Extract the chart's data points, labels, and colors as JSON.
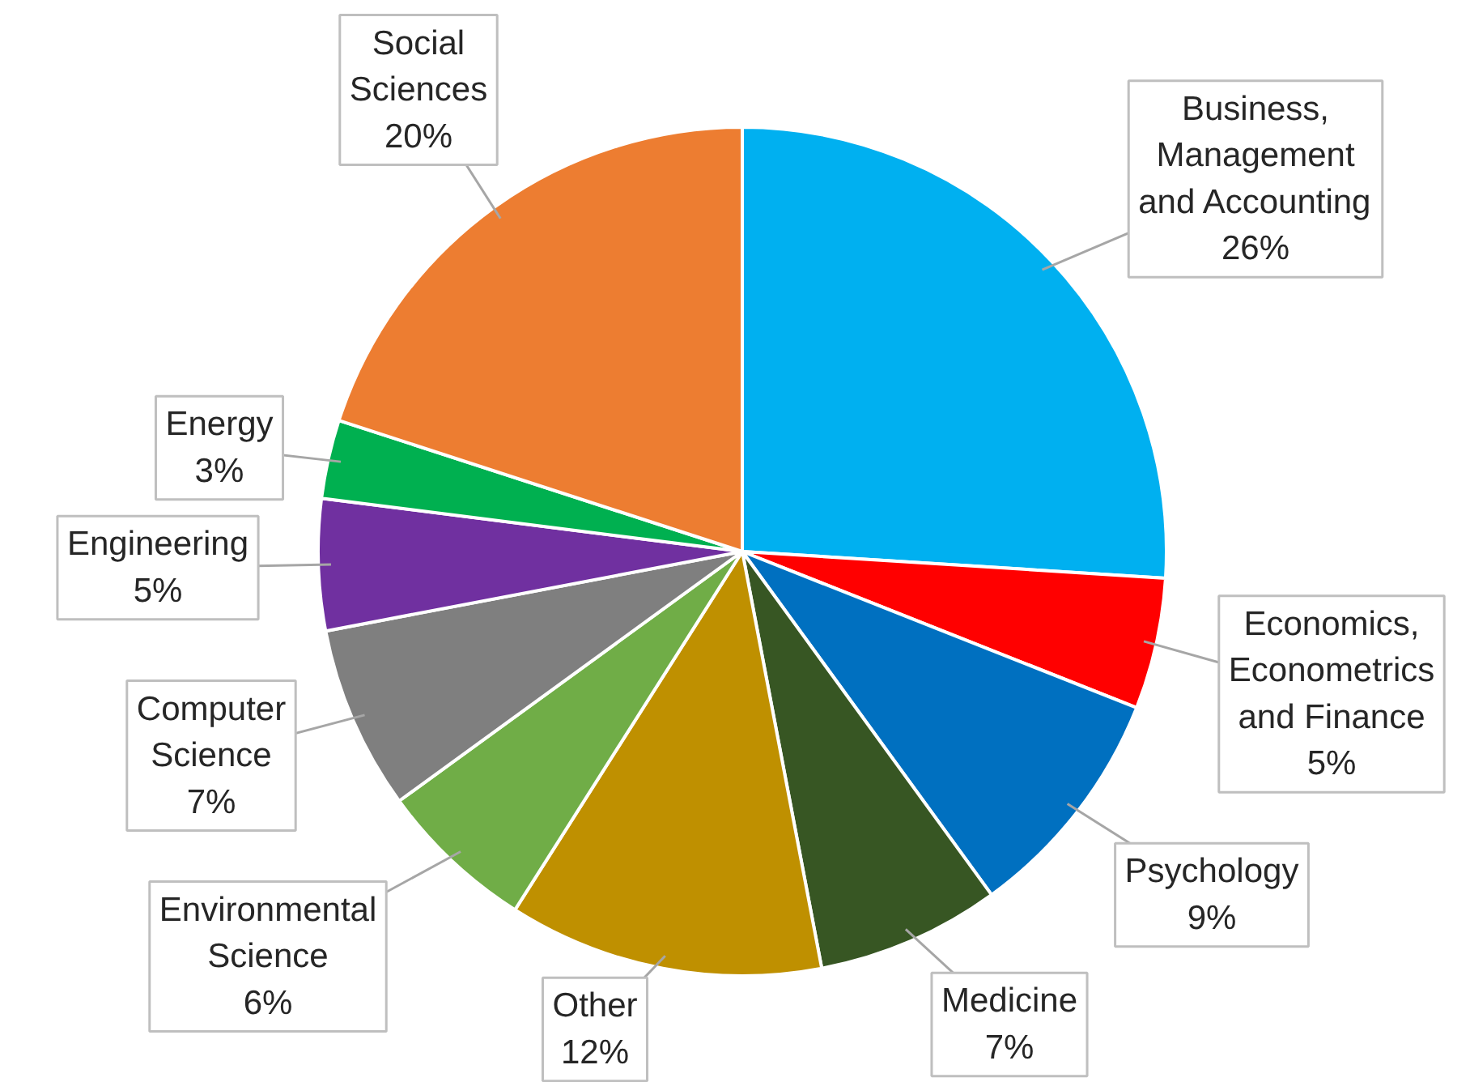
{
  "chart_data": {
    "type": "pie",
    "categories": [
      "Business,\nManagement\nand Accounting",
      "Economics,\nEconometrics\nand Finance",
      "Psychology",
      "Medicine",
      "Other",
      "Environmental\nScience",
      "Computer\nScience",
      "Engineering",
      "Energy",
      "Social\nSciences"
    ],
    "values": [
      26,
      5,
      9,
      7,
      12,
      6,
      7,
      5,
      3,
      20
    ],
    "value_labels": [
      "26%",
      "5%",
      "9%",
      "7%",
      "12%",
      "6%",
      "7%",
      "5%",
      "3%",
      "20%"
    ],
    "colors": [
      "#00b0f0",
      "#ff0000",
      "#0070c0",
      "#375623",
      "#bf9000",
      "#70ad47",
      "#7f7f7f",
      "#7030a0",
      "#00b050",
      "#ed7d31"
    ]
  }
}
